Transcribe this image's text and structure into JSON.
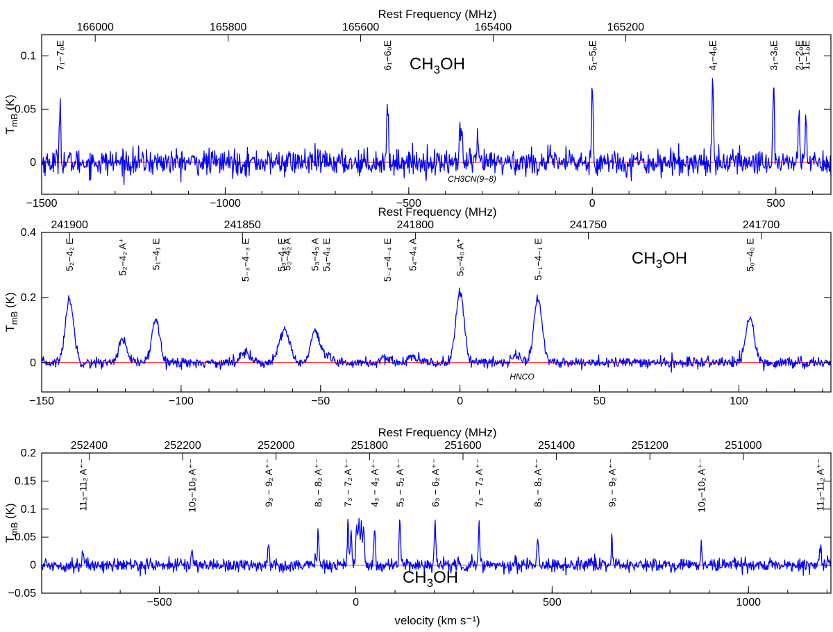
{
  "figure": {
    "xlabel": "velocity (km s⁻¹)",
    "colors": {
      "spectrum": "#0000ff",
      "baseline": "#ff0000",
      "axes": "#000000"
    }
  },
  "chart_data": [
    {
      "type": "line",
      "top_axis_label": "Rest Frequency (MHz)",
      "ylabel": "T_mB (K)",
      "molecule": "CH3OH",
      "annotation": "CH3CN(9−8)",
      "xlim": [
        -1500,
        650
      ],
      "ylim": [
        -0.03,
        0.12
      ],
      "x_ticks": [
        -1500,
        -1000,
        -500,
        0,
        500
      ],
      "y_ticks": [
        0,
        0.05,
        0.1
      ],
      "y_tick_labels": [
        "0",
        "0.05",
        "0.1"
      ],
      "top_ticks": [
        {
          "label": "166000",
          "x": -1354
        },
        {
          "label": "165800",
          "x": -992
        },
        {
          "label": "165600",
          "x": -631
        },
        {
          "label": "165400",
          "x": -270
        },
        {
          "label": "165200",
          "x": 91
        }
      ],
      "noise": 0.006,
      "series": [
        {
          "peaks": [
            {
              "label": "7₁−7₀E",
              "x": -1450,
              "y": 0.06,
              "width": 2
            },
            {
              "label": "6₁−6₀E",
              "x": -558,
              "y": 0.062,
              "width": 2
            },
            {
              "label": "",
              "x": -361,
              "y": 0.028,
              "width": 2
            },
            {
              "label": "",
              "x": -356,
              "y": 0.026,
              "width": 2
            },
            {
              "label": "",
              "x": -312,
              "y": 0.018,
              "width": 2
            },
            {
              "label": "5₁−5₀E",
              "x": 0,
              "y": 0.076,
              "width": 2
            },
            {
              "label": "4₁−4₀E",
              "x": 328,
              "y": 0.08,
              "width": 2
            },
            {
              "label": "3₁−3₀E",
              "x": 494,
              "y": 0.076,
              "width": 2
            },
            {
              "label": "2₁−2₀E",
              "x": 563,
              "y": 0.053,
              "width": 2
            },
            {
              "label": "1₁−1₀E",
              "x": 582,
              "y": 0.041,
              "width": 2
            }
          ]
        }
      ]
    },
    {
      "type": "line",
      "top_axis_label": "Rest Frequency (MHz)",
      "ylabel": "T_mB (K)",
      "molecule": "CH3OH",
      "annotation": "HNCO",
      "xlim": [
        -150,
        133
      ],
      "ylim": [
        -0.09,
        0.4
      ],
      "x_ticks": [
        -150,
        -100,
        -50,
        0,
        50,
        100
      ],
      "y_ticks": [
        0,
        0.2,
        0.4
      ],
      "y_tick_labels": [
        "0",
        "0.2",
        "0.4"
      ],
      "top_ticks": [
        {
          "label": "241900",
          "x": -140
        },
        {
          "label": "241850",
          "x": -78
        },
        {
          "label": "241800",
          "x": -16
        },
        {
          "label": "241750",
          "x": 46
        },
        {
          "label": "241700",
          "x": 108
        }
      ],
      "noise": 0.008,
      "series": [
        {
          "peaks": [
            {
              "label": "5₂−4₂ E",
              "x": -140,
              "y": 0.195,
              "width": 1.5
            },
            {
              "label": "5₂−4₂ A⁺",
              "x": -121,
              "y": 0.068,
              "width": 1.5
            },
            {
              "label": "5₁−4₁ E",
              "x": -109,
              "y": 0.132,
              "width": 1.5
            },
            {
              "label": "5₋₃−4₋₃ E",
              "x": -77,
              "y": 0.04,
              "width": 1.5
            },
            {
              "label": "5₃−4₃ E",
              "x": -64,
              "y": 0.055,
              "width": 1.5
            },
            {
              "label": "5₂−4₂ A",
              "x": -62,
              "y": 0.065,
              "width": 1.5
            },
            {
              "label": "5₃−4₃ A",
              "x": -52,
              "y": 0.095,
              "width": 1.5
            },
            {
              "label": "5₄−4₄ E",
              "x": -48,
              "y": 0.02,
              "width": 1.5
            },
            {
              "label": "5₋₄−4₋₄ E",
              "x": -26,
              "y": 0.012,
              "width": 1.5
            },
            {
              "label": "5₄−4₄ A",
              "x": -17,
              "y": 0.018,
              "width": 1.5
            },
            {
              "label": "5₀−4₀ A⁺",
              "x": 0,
              "y": 0.215,
              "width": 1.5
            },
            {
              "label": "",
              "x": 20,
              "y": 0.025,
              "width": 1.5
            },
            {
              "label": "5₋₁−4₋₁ E",
              "x": 28,
              "y": 0.195,
              "width": 1.5
            },
            {
              "label": "5₀−4₀ E",
              "x": 104,
              "y": 0.14,
              "width": 1.5
            }
          ]
        }
      ]
    },
    {
      "type": "line",
      "top_axis_label": "Rest Frequency (MHz)",
      "ylabel": "T_mB (K)",
      "molecule": "CH3OH",
      "xlabel": "velocity (km s⁻¹)",
      "xlim": [
        -800,
        1210
      ],
      "ylim": [
        -0.05,
        0.2
      ],
      "x_ticks": [
        -500,
        0,
        500,
        1000
      ],
      "y_ticks": [
        -0.05,
        0,
        0.05,
        0.1,
        0.15,
        0.2
      ],
      "y_tick_labels": [
        "−0.05",
        "0",
        "0.05",
        "0.1",
        "0.15",
        "0.2"
      ],
      "top_ticks": [
        {
          "label": "252400",
          "x": -679
        },
        {
          "label": "252200",
          "x": -441
        },
        {
          "label": "252000",
          "x": -203
        },
        {
          "label": "251800",
          "x": 35
        },
        {
          "label": "251600",
          "x": 273
        },
        {
          "label": "251400",
          "x": 511
        },
        {
          "label": "251200",
          "x": 749
        },
        {
          "label": "251000",
          "x": 987
        }
      ],
      "noise": 0.006,
      "series": [
        {
          "peaks": [
            {
              "label": "11₃−11₂ A⁺⁻",
              "x": -695,
              "y": 0.022,
              "width": 2
            },
            {
              "label": "10₃−10₂ A⁺⁻",
              "x": -417,
              "y": 0.03,
              "width": 2
            },
            {
              "label": "9₃ − 9₂ A⁺⁻",
              "x": -222,
              "y": 0.035,
              "width": 2
            },
            {
              "label": "8₃ − 8₂ A⁺⁻",
              "x": -96,
              "y": 0.058,
              "width": 2
            },
            {
              "label": "7₃ − 7₂ A⁺⁻",
              "x": -20,
              "y": 0.075,
              "width": 2
            },
            {
              "label": "",
              "x": -12,
              "y": 0.055,
              "width": 2
            },
            {
              "label": "",
              "x": 2,
              "y": 0.07,
              "width": 2
            },
            {
              "label": "",
              "x": 8,
              "y": 0.078,
              "width": 2
            },
            {
              "label": "",
              "x": 14,
              "y": 0.075,
              "width": 2
            },
            {
              "label": "",
              "x": 20,
              "y": 0.068,
              "width": 2
            },
            {
              "label": "4₃ − 4₂ A⁺⁻",
              "x": 48,
              "y": 0.065,
              "width": 2
            },
            {
              "label": "5₃ − 5₂ A⁺⁻",
              "x": 112,
              "y": 0.082,
              "width": 2
            },
            {
              "label": "6₃ − 6₂ A⁺⁻",
              "x": 202,
              "y": 0.08,
              "width": 2
            },
            {
              "label": "7₃ − 7₂ A⁺⁻",
              "x": 314,
              "y": 0.077,
              "width": 2
            },
            {
              "label": "8₃ − 8₂ A⁺⁻",
              "x": 463,
              "y": 0.06,
              "width": 2
            },
            {
              "label": "9₃ − 9₂ A⁺⁻",
              "x": 652,
              "y": 0.045,
              "width": 2
            },
            {
              "label": "10₃−10₂ A⁺⁻",
              "x": 880,
              "y": 0.036,
              "width": 2
            },
            {
              "label": "11₃−11₂ A⁺⁻",
              "x": 1183,
              "y": 0.027,
              "width": 2
            }
          ]
        }
      ]
    }
  ]
}
